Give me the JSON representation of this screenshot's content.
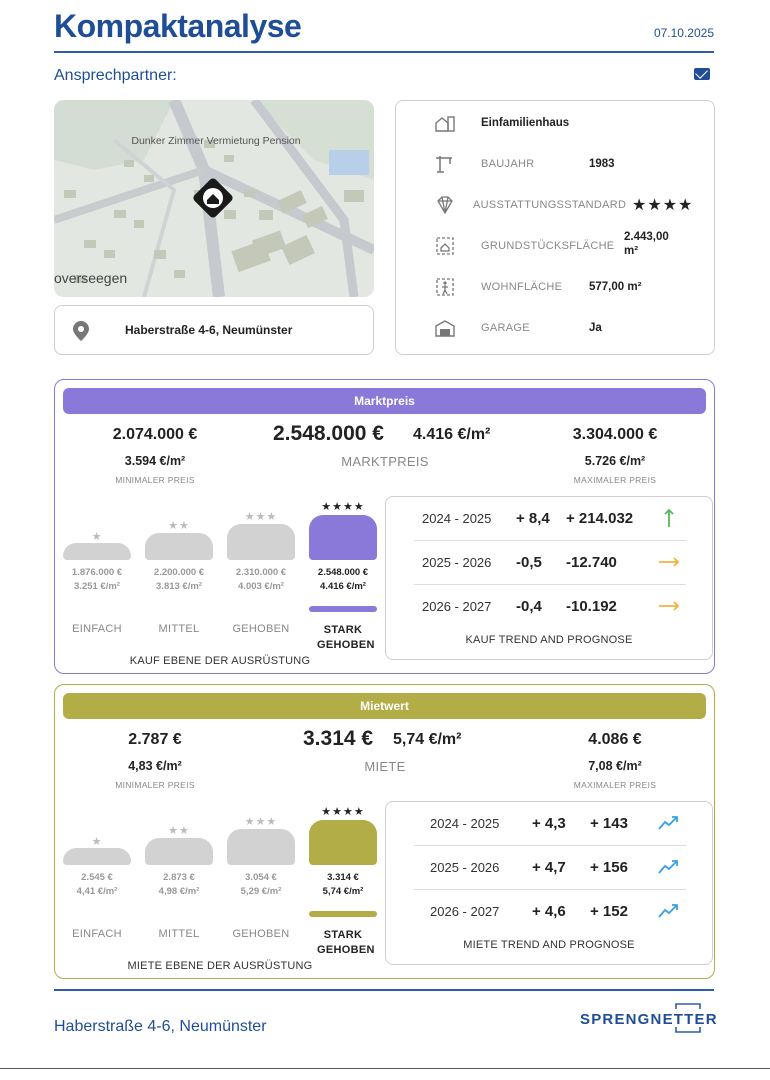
{
  "header": {
    "title": "Kompaktanalyse",
    "date": "07.10.2025",
    "contact_label": "Ansprechpartner:"
  },
  "colors": {
    "brand": "#1f4e96",
    "marktpreis": "#8b79d9",
    "mietwert": "#b2ad47",
    "inactive": "#d2d2d2",
    "up_green": "#5ab85a",
    "flat_orange": "#f0b43a",
    "trend_blue": "#3aa0e6"
  },
  "map": {
    "poi_label": "Dunker Zimmer Vermietung Pension",
    "place_label": "overseegen"
  },
  "address": "Haberstraße 4-6, Neumünster",
  "property": {
    "type": "Einfamilienhaus",
    "rows": [
      {
        "icon": "crane-icon",
        "label": "BAUJAHR",
        "value": "1983"
      },
      {
        "icon": "diamond-icon",
        "label": "AUSSTATTUNGSSTANDARD",
        "value": "★★★★"
      },
      {
        "icon": "plot-area-icon",
        "label": "GRUNDSTÜCKSFLÄCHE",
        "value": "2.443,00 m²"
      },
      {
        "icon": "floor-area-icon",
        "label": "WOHNFLÄCHE",
        "value": "577,00 m²"
      },
      {
        "icon": "garage-icon",
        "label": "GARAGE",
        "value": "Ja"
      }
    ]
  },
  "kauf": {
    "title": "Marktpreis",
    "min": {
      "value": "2.074.000 €",
      "per_m2": "3.594 €/m²",
      "label": "MINIMALER PREIS"
    },
    "center": {
      "value": "2.548.000 €",
      "per_m2": "4.416 €/m²",
      "label": "MARKTPREIS"
    },
    "max": {
      "value": "3.304.000 €",
      "per_m2": "5.726 €/m²",
      "label": "MAXIMALER PREIS"
    },
    "levels": [
      {
        "stars": "★",
        "value": "1.876.000 €",
        "per_m2": "3.251 €/m²",
        "label": "EINFACH"
      },
      {
        "stars": "★★",
        "value": "2.200.000 €",
        "per_m2": "3.813 €/m²",
        "label": "MITTEL"
      },
      {
        "stars": "★★★",
        "value": "2.310.000 €",
        "per_m2": "4.003 €/m²",
        "label": "GEHOBEN"
      },
      {
        "stars": "★★★★",
        "value": "2.548.000 €",
        "per_m2": "4.416 €/m²",
        "label": "STARK GEHOBEN"
      }
    ],
    "levels_caption": "KAUF EBENE DER AUSRÜSTUNG",
    "trend": [
      {
        "years": "2024 - 2025",
        "pct": "+ 8,4",
        "abs": "+ 214.032",
        "arrow": "up-arrow-icon"
      },
      {
        "years": "2025 - 2026",
        "pct": "-0,5",
        "abs": "-12.740",
        "arrow": "right-arrow-icon"
      },
      {
        "years": "2026 - 2027",
        "pct": "-0,4",
        "abs": "-10.192",
        "arrow": "right-arrow-icon"
      }
    ],
    "trend_caption": "KAUF TREND AND PROGNOSE"
  },
  "miete": {
    "title": "Mietwert",
    "min": {
      "value": "2.787 €",
      "per_m2": "4,83 €/m²",
      "label": "MINIMALER PREIS"
    },
    "center": {
      "value": "3.314 €",
      "per_m2": "5,74 €/m²",
      "label": "MIETE"
    },
    "max": {
      "value": "4.086 €",
      "per_m2": "7,08 €/m²",
      "label": "MAXIMALER PREIS"
    },
    "levels": [
      {
        "stars": "★",
        "value": "2.545 €",
        "per_m2": "4,41 €/m²",
        "label": "EINFACH"
      },
      {
        "stars": "★★",
        "value": "2.873 €",
        "per_m2": "4,98 €/m²",
        "label": "MITTEL"
      },
      {
        "stars": "★★★",
        "value": "3.054 €",
        "per_m2": "5,29 €/m²",
        "label": "GEHOBEN"
      },
      {
        "stars": "★★★★",
        "value": "3.314 €",
        "per_m2": "5,74 €/m²",
        "label": "STARK GEHOBEN"
      }
    ],
    "levels_caption": "MIETE EBENE DER AUSRÜSTUNG",
    "trend": [
      {
        "years": "2024 - 2025",
        "pct": "+ 4,3",
        "abs": "+ 143",
        "arrow": "trend-up-icon"
      },
      {
        "years": "2025 - 2026",
        "pct": "+ 4,7",
        "abs": "+ 156",
        "arrow": "trend-up-icon"
      },
      {
        "years": "2026 - 2027",
        "pct": "+ 4,6",
        "abs": "+ 152",
        "arrow": "trend-up-icon"
      }
    ],
    "trend_caption": "MIETE TREND AND PROGNOSE"
  },
  "footer": {
    "address": "Haberstraße 4-6, Neumünster",
    "brand": "SPRENGNETTER"
  }
}
